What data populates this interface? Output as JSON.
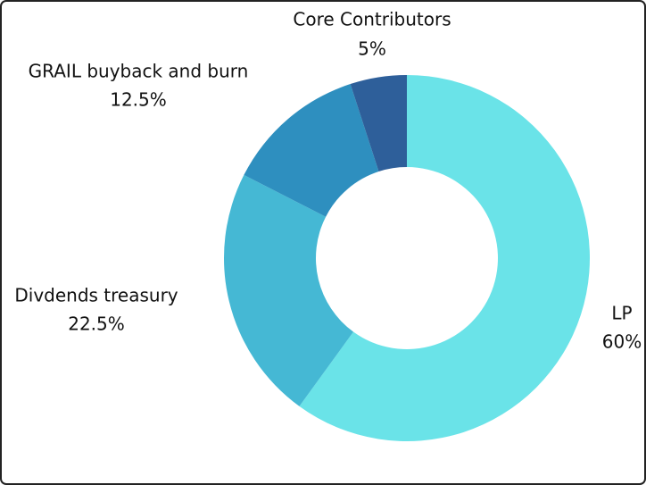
{
  "chart_data": {
    "type": "donut",
    "categories": [
      "LP",
      "Divdends treasury",
      "GRAIL buyback and burn",
      "Core Contributors"
    ],
    "values": [
      60,
      22.5,
      12.5,
      5
    ],
    "value_labels": [
      "60%",
      "22.5%",
      "12.5%",
      "5%"
    ],
    "colors": [
      "#6ae3e8",
      "#45b8d4",
      "#2e8fbf",
      "#2e5f9a"
    ]
  }
}
